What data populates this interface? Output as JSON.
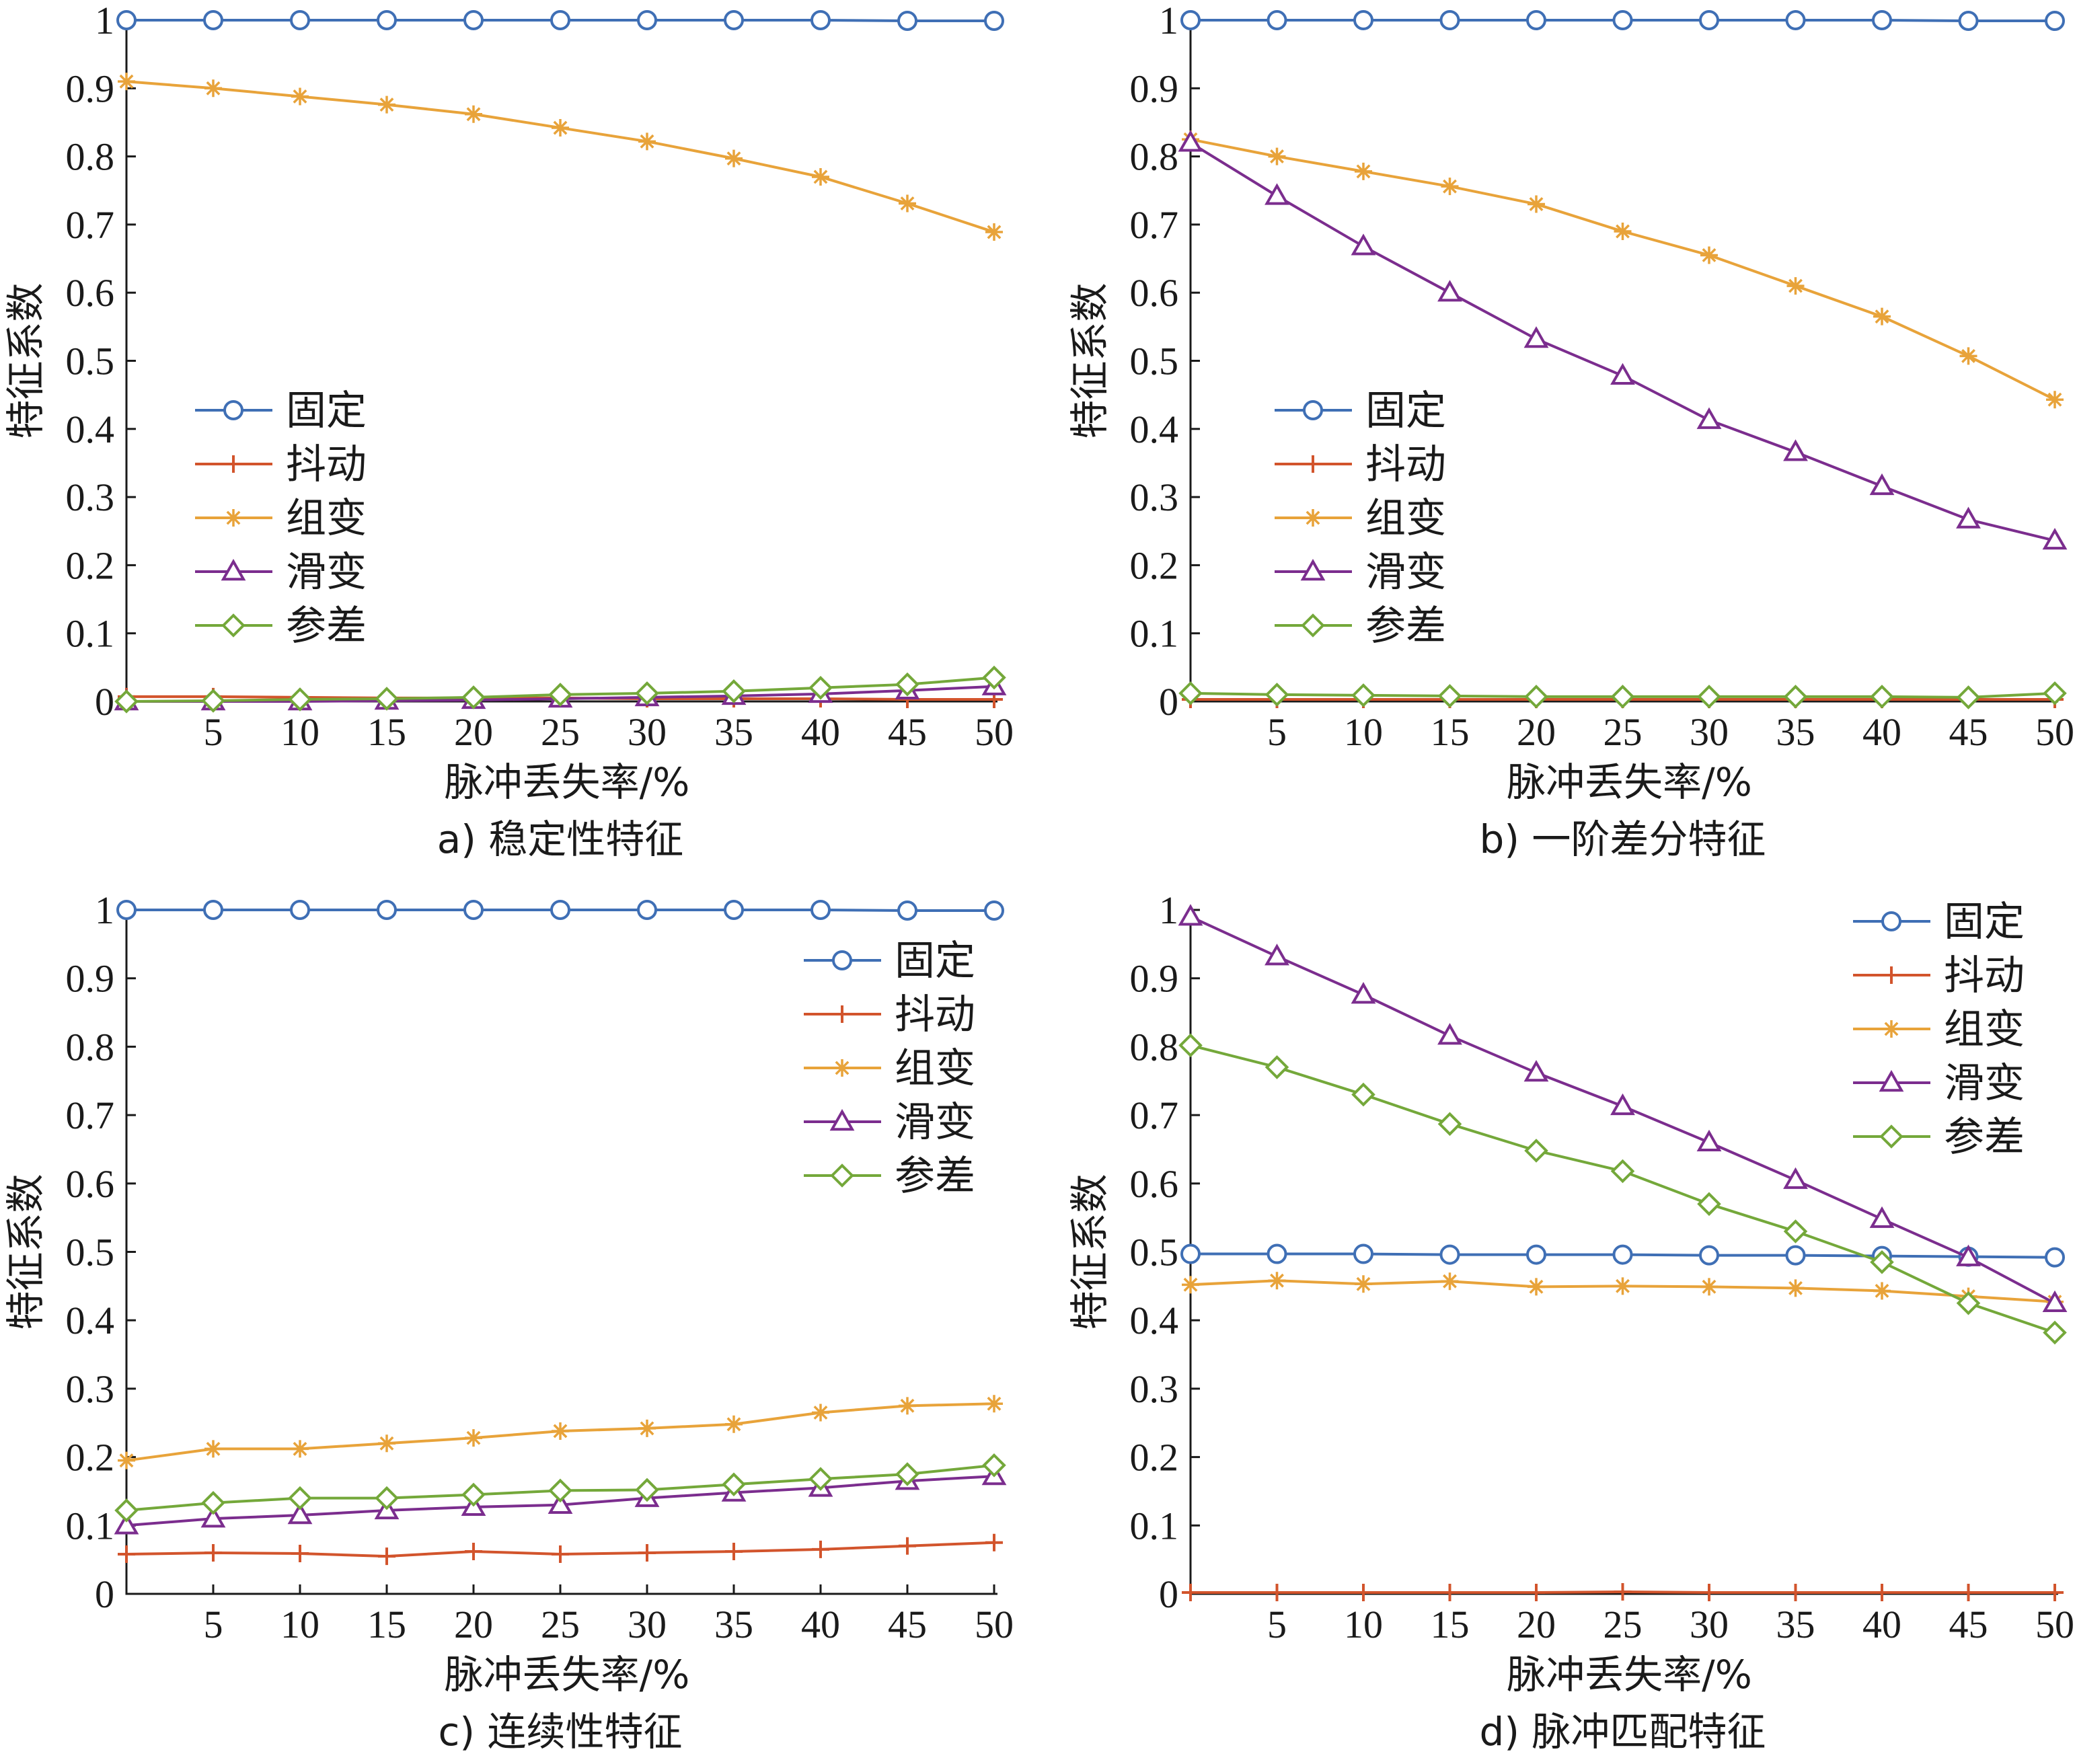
{
  "colors": {
    "fixed": "#3f6fb5",
    "jitter": "#d2542c",
    "group": "#e8a33a",
    "slide": "#7b2d8e",
    "stagger": "#74a83a"
  },
  "chart_data": [
    {
      "type": "line",
      "caption": "a) 稳定性特征",
      "xlabel": "脉冲丢失率/%",
      "ylabel": "特征系数",
      "xlim": [
        0,
        50
      ],
      "ylim": [
        0,
        1
      ],
      "x": [
        0,
        5,
        10,
        15,
        20,
        25,
        30,
        35,
        40,
        45,
        50
      ],
      "x_tick_labels": [
        "5",
        "10",
        "15",
        "20",
        "25",
        "30",
        "35",
        "40",
        "45",
        "50"
      ],
      "y_tick_labels": [
        "0",
        "0.1",
        "0.2",
        "0.3",
        "0.4",
        "0.5",
        "0.6",
        "0.7",
        "0.8",
        "0.9",
        "1"
      ],
      "legend_position": "middle-left",
      "series": [
        {
          "name": "固定",
          "key": "fixed",
          "marker": "circle",
          "values": [
            1.0,
            1.0,
            1.0,
            1.0,
            1.0,
            1.0,
            1.0,
            1.0,
            1.0,
            0.999,
            0.999
          ]
        },
        {
          "name": "抖动",
          "key": "jitter",
          "marker": "plus",
          "values": [
            0.007,
            0.007,
            0.006,
            0.005,
            0.005,
            0.005,
            0.004,
            0.004,
            0.004,
            0.003,
            0.003
          ]
        },
        {
          "name": "组变",
          "key": "group",
          "marker": "star",
          "values": [
            0.91,
            0.9,
            0.888,
            0.876,
            0.862,
            0.842,
            0.822,
            0.797,
            0.77,
            0.731,
            0.689
          ]
        },
        {
          "name": "滑变",
          "key": "slide",
          "marker": "triangle",
          "values": [
            0.0,
            0.0,
            0.0,
            0.001,
            0.002,
            0.004,
            0.006,
            0.008,
            0.011,
            0.016,
            0.022
          ]
        },
        {
          "name": "参差",
          "key": "stagger",
          "marker": "diamond",
          "values": [
            0.0,
            0.001,
            0.003,
            0.004,
            0.006,
            0.01,
            0.012,
            0.015,
            0.02,
            0.025,
            0.035
          ]
        }
      ]
    },
    {
      "type": "line",
      "caption": "b) 一阶差分特征",
      "xlabel": "脉冲丢失率/%",
      "ylabel": "特征系数",
      "xlim": [
        0,
        50
      ],
      "ylim": [
        0,
        1
      ],
      "x": [
        0,
        5,
        10,
        15,
        20,
        25,
        30,
        35,
        40,
        45,
        50
      ],
      "x_tick_labels": [
        "5",
        "10",
        "15",
        "20",
        "25",
        "30",
        "35",
        "40",
        "45",
        "50"
      ],
      "y_tick_labels": [
        "0",
        "0.1",
        "0.2",
        "0.3",
        "0.4",
        "0.5",
        "0.6",
        "0.7",
        "0.8",
        "0.9",
        "1"
      ],
      "legend_position": "middle-left",
      "series": [
        {
          "name": "固定",
          "key": "fixed",
          "marker": "circle",
          "values": [
            1.0,
            1.0,
            1.0,
            1.0,
            1.0,
            1.0,
            1.0,
            1.0,
            1.0,
            0.999,
            0.999
          ]
        },
        {
          "name": "抖动",
          "key": "jitter",
          "marker": "plus",
          "values": [
            0.003,
            0.003,
            0.003,
            0.003,
            0.003,
            0.003,
            0.003,
            0.003,
            0.003,
            0.003,
            0.003
          ]
        },
        {
          "name": "组变",
          "key": "group",
          "marker": "star",
          "values": [
            0.825,
            0.8,
            0.778,
            0.756,
            0.73,
            0.69,
            0.655,
            0.61,
            0.565,
            0.507,
            0.443
          ]
        },
        {
          "name": "滑变",
          "key": "slide",
          "marker": "triangle",
          "values": [
            0.82,
            0.742,
            0.668,
            0.6,
            0.532,
            0.478,
            0.413,
            0.366,
            0.316,
            0.267,
            0.236
          ]
        },
        {
          "name": "参差",
          "key": "stagger",
          "marker": "diamond",
          "values": [
            0.012,
            0.01,
            0.009,
            0.008,
            0.007,
            0.007,
            0.007,
            0.007,
            0.007,
            0.006,
            0.012
          ]
        }
      ]
    },
    {
      "type": "line",
      "caption": "c) 连续性特征",
      "xlabel": "脉冲丢失率/%",
      "ylabel": "特征系数",
      "xlim": [
        0,
        50
      ],
      "ylim": [
        0,
        1
      ],
      "x": [
        0,
        5,
        10,
        15,
        20,
        25,
        30,
        35,
        40,
        45,
        50
      ],
      "x_tick_labels": [
        "5",
        "10",
        "15",
        "20",
        "25",
        "30",
        "35",
        "40",
        "45",
        "50"
      ],
      "y_tick_labels": [
        "0",
        "0.1",
        "0.2",
        "0.3",
        "0.4",
        "0.5",
        "0.6",
        "0.7",
        "0.8",
        "0.9",
        "1"
      ],
      "legend_position": "top-right",
      "series": [
        {
          "name": "固定",
          "key": "fixed",
          "marker": "circle",
          "values": [
            1.0,
            1.0,
            1.0,
            1.0,
            1.0,
            1.0,
            1.0,
            1.0,
            1.0,
            0.999,
            0.999
          ]
        },
        {
          "name": "抖动",
          "key": "jitter",
          "marker": "plus",
          "values": [
            0.058,
            0.06,
            0.059,
            0.055,
            0.062,
            0.058,
            0.06,
            0.062,
            0.065,
            0.07,
            0.075
          ]
        },
        {
          "name": "组变",
          "key": "group",
          "marker": "star",
          "values": [
            0.195,
            0.212,
            0.212,
            0.22,
            0.228,
            0.238,
            0.242,
            0.248,
            0.265,
            0.275,
            0.278
          ]
        },
        {
          "name": "滑变",
          "key": "slide",
          "marker": "triangle",
          "values": [
            0.1,
            0.11,
            0.115,
            0.122,
            0.127,
            0.13,
            0.14,
            0.148,
            0.155,
            0.165,
            0.172
          ]
        },
        {
          "name": "参差",
          "key": "stagger",
          "marker": "diamond",
          "values": [
            0.122,
            0.133,
            0.14,
            0.14,
            0.145,
            0.151,
            0.152,
            0.16,
            0.168,
            0.175,
            0.188
          ]
        }
      ]
    },
    {
      "type": "line",
      "caption": "d) 脉冲匹配特征",
      "xlabel": "脉冲丢失率/%",
      "ylabel": "特征系数",
      "xlim": [
        0,
        50
      ],
      "ylim": [
        0,
        1
      ],
      "x": [
        0,
        5,
        10,
        15,
        20,
        25,
        30,
        35,
        40,
        45,
        50
      ],
      "x_tick_labels": [
        "5",
        "10",
        "15",
        "20",
        "25",
        "30",
        "35",
        "40",
        "45",
        "50"
      ],
      "y_tick_labels": [
        "0",
        "0.1",
        "0.2",
        "0.3",
        "0.4",
        "0.5",
        "0.6",
        "0.7",
        "0.8",
        "0.9",
        "1"
      ],
      "legend_position": "top-right",
      "series": [
        {
          "name": "固定",
          "key": "fixed",
          "marker": "circle",
          "values": [
            0.497,
            0.497,
            0.497,
            0.496,
            0.496,
            0.496,
            0.495,
            0.495,
            0.494,
            0.493,
            0.492
          ]
        },
        {
          "name": "抖动",
          "key": "jitter",
          "marker": "plus",
          "values": [
            0.002,
            0.002,
            0.002,
            0.002,
            0.002,
            0.003,
            0.002,
            0.002,
            0.002,
            0.002,
            0.002
          ]
        },
        {
          "name": "组变",
          "key": "group",
          "marker": "star",
          "values": [
            0.452,
            0.458,
            0.453,
            0.457,
            0.449,
            0.45,
            0.449,
            0.447,
            0.443,
            0.435,
            0.427
          ]
        },
        {
          "name": "滑变",
          "key": "slide",
          "marker": "triangle",
          "values": [
            0.99,
            0.932,
            0.876,
            0.816,
            0.762,
            0.713,
            0.66,
            0.605,
            0.548,
            0.492,
            0.425
          ]
        },
        {
          "name": "参差",
          "key": "stagger",
          "marker": "diamond",
          "values": [
            0.802,
            0.77,
            0.73,
            0.687,
            0.648,
            0.618,
            0.57,
            0.53,
            0.485,
            0.425,
            0.382
          ]
        }
      ]
    }
  ]
}
